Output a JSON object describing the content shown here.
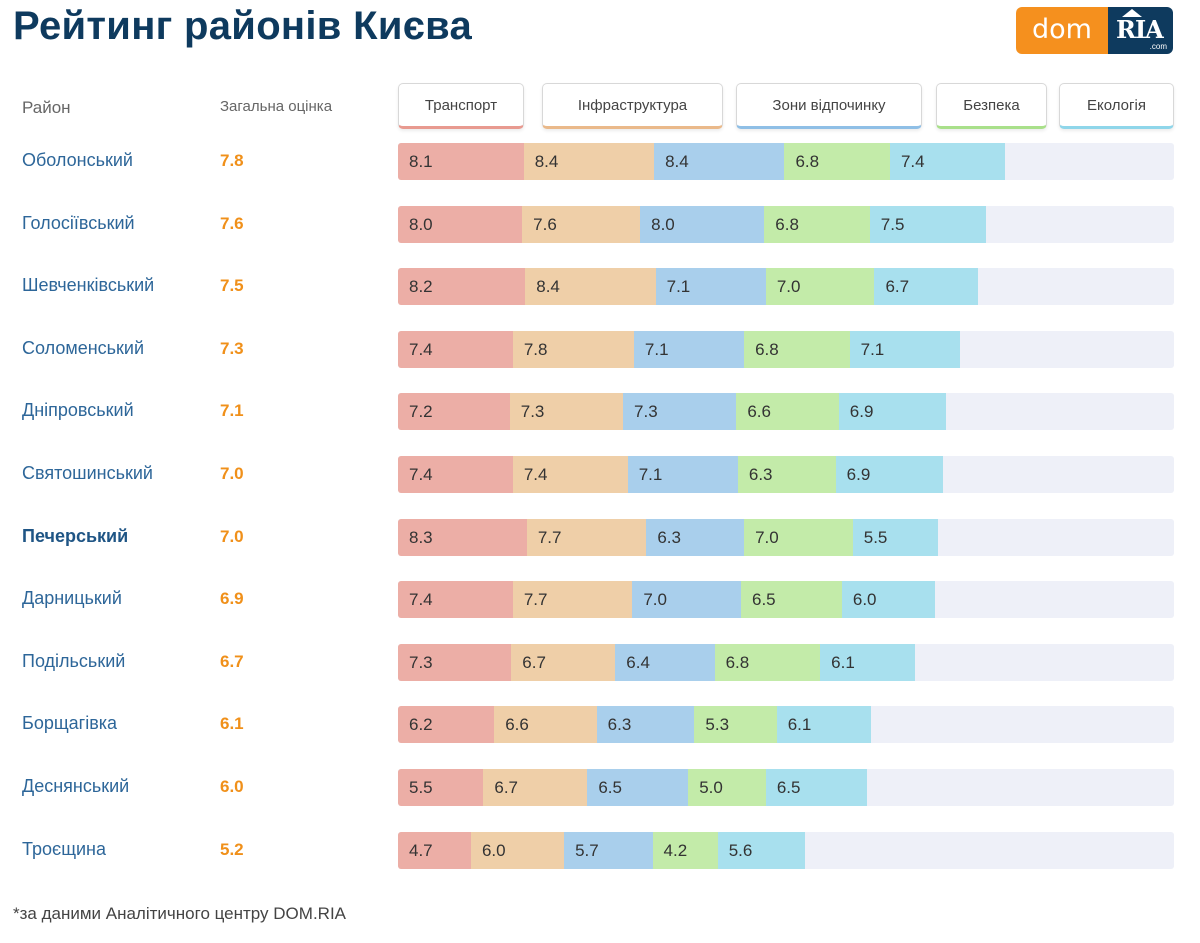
{
  "title": "Рейтинг районів Києва",
  "logo": {
    "left": "dom",
    "right": "RIA",
    "sub": ".com"
  },
  "headers": {
    "district": "Район",
    "overall": "Загальна оцінка"
  },
  "categories": [
    {
      "label": "Транспорт",
      "color": "#ecaea6",
      "accent": "#e89a90"
    },
    {
      "label": "Інфраструктура",
      "color": "#efcfa8",
      "accent": "#eab98a"
    },
    {
      "label": "Зони відпочинку",
      "color": "#a9cfec",
      "accent": "#8fbfe6"
    },
    {
      "label": "Безпека",
      "color": "#c3eba9",
      "accent": "#a9e08a"
    },
    {
      "label": "Екологія",
      "color": "#a8e0ee",
      "accent": "#8fd6ea"
    }
  ],
  "footnote": "*за даними Аналітичного центру DOM.RIA",
  "chart_data": {
    "type": "bar",
    "stacked": true,
    "orientation": "horizontal",
    "title": "Рейтинг районів Києва",
    "categories": [
      "Оболонський",
      "Голосіївський",
      "Шевченківський",
      "Соломенський",
      "Дніпровський",
      "Святошинський",
      "Печерський",
      "Дарницький",
      "Подільський",
      "Борщагівка",
      "Деснянський",
      "Троєщина"
    ],
    "overall": [
      "7.8",
      "7.6",
      "7.5",
      "7.3",
      "7.1",
      "7.0",
      "7.0",
      "6.9",
      "6.7",
      "6.1",
      "6.0",
      "5.2"
    ],
    "highlighted": "Печерський",
    "series": [
      {
        "name": "Транспорт",
        "values": [
          "8.1",
          "8.0",
          "8.2",
          "7.4",
          "7.2",
          "7.4",
          "8.3",
          "7.4",
          "7.3",
          "6.2",
          "5.5",
          "4.7"
        ]
      },
      {
        "name": "Інфраструктура",
        "values": [
          "8.4",
          "7.6",
          "8.4",
          "7.8",
          "7.3",
          "7.4",
          "7.7",
          "7.7",
          "6.7",
          "6.6",
          "6.7",
          "6.0"
        ]
      },
      {
        "name": "Зони відпочинку",
        "values": [
          "8.4",
          "8.0",
          "7.1",
          "7.1",
          "7.3",
          "7.1",
          "6.3",
          "7.0",
          "6.4",
          "6.3",
          "6.5",
          "5.7"
        ]
      },
      {
        "name": "Безпека",
        "values": [
          "6.8",
          "6.8",
          "7.0",
          "6.8",
          "6.6",
          "6.3",
          "7.0",
          "6.5",
          "6.8",
          "5.3",
          "5.0",
          "4.2"
        ]
      },
      {
        "name": "Екологія",
        "values": [
          "7.4",
          "7.5",
          "6.7",
          "7.1",
          "6.9",
          "6.9",
          "5.5",
          "6.0",
          "6.1",
          "6.1",
          "6.5",
          "5.6"
        ]
      }
    ],
    "xmax": 50
  }
}
